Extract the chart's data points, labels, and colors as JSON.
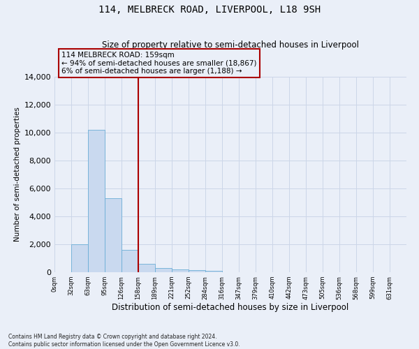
{
  "title": "114, MELBRECK ROAD, LIVERPOOL, L18 9SH",
  "subtitle": "Size of property relative to semi-detached houses in Liverpool",
  "xlabel": "Distribution of semi-detached houses by size in Liverpool",
  "ylabel": "Number of semi-detached properties",
  "footnote1": "Contains HM Land Registry data © Crown copyright and database right 2024.",
  "footnote2": "Contains public sector information licensed under the Open Government Licence v3.0.",
  "annotation_line1": "114 MELBRECK ROAD: 159sqm",
  "annotation_line2": "← 94% of semi-detached houses are smaller (18,867)",
  "annotation_line3": "6% of semi-detached houses are larger (1,188) →",
  "bin_edges": [
    0,
    31.5,
    63,
    94.5,
    126,
    157.5,
    189,
    220.5,
    252,
    283.5,
    315,
    346.5,
    378,
    409.5,
    441,
    472.5,
    504,
    535.5,
    567,
    598.5,
    630,
    661.5
  ],
  "bar_values": [
    0,
    2000,
    10200,
    5300,
    1600,
    600,
    300,
    200,
    150,
    100,
    0,
    0,
    0,
    0,
    0,
    0,
    0,
    0,
    0,
    0,
    0
  ],
  "bar_color": "#c9d9ef",
  "bar_edge_color": "#6baed6",
  "vline_color": "#aa0000",
  "vline_x": 157.5,
  "box_edge_color": "#aa0000",
  "ylim": [
    0,
    14000
  ],
  "yticks": [
    0,
    2000,
    4000,
    6000,
    8000,
    10000,
    12000,
    14000
  ],
  "xtick_labels": [
    "0sqm",
    "32sqm",
    "63sqm",
    "95sqm",
    "126sqm",
    "158sqm",
    "189sqm",
    "221sqm",
    "252sqm",
    "284sqm",
    "316sqm",
    "347sqm",
    "379sqm",
    "410sqm",
    "442sqm",
    "473sqm",
    "505sqm",
    "536sqm",
    "568sqm",
    "599sqm",
    "631sqm"
  ],
  "grid_color": "#ccd6e8",
  "bg_color": "#eaeff8",
  "title_fontsize": 10,
  "subtitle_fontsize": 8.5,
  "ylabel_fontsize": 7.5,
  "xlabel_fontsize": 8.5,
  "ytick_fontsize": 8,
  "xtick_fontsize": 6,
  "footnote_fontsize": 5.5,
  "annot_fontsize": 7.5
}
